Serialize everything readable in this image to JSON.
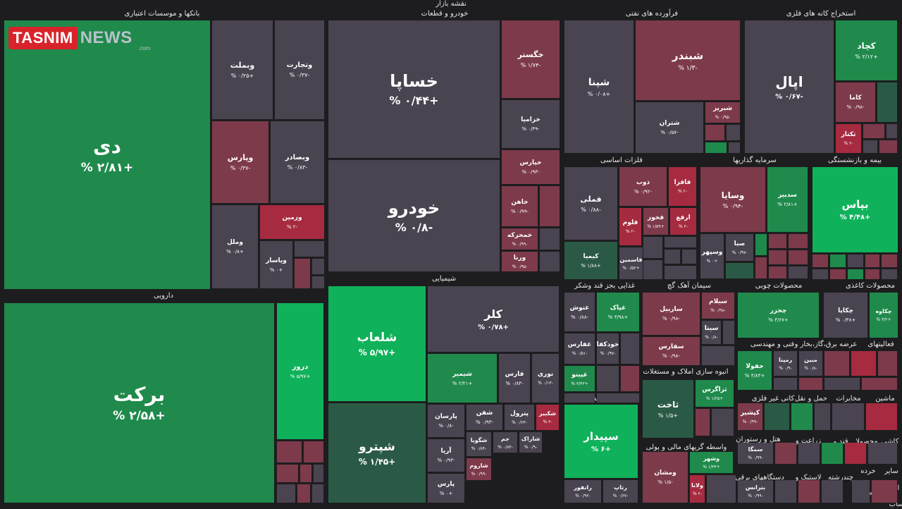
{
  "logo": {
    "brand": "TASNIM",
    "suffix": "NEWS",
    "domain": ".com"
  },
  "colors": {
    "bg": "#1d1d1f",
    "neutral": "#4a4350",
    "loss": "#7d3a4b",
    "loss_strong": "#a62b40",
    "gain": "#1f8a4c",
    "gain_bright": "#0fb25a",
    "gain_dark": "#2a5a45"
  },
  "top_title": "نقشه بازار",
  "sectors": [
    {
      "name": "بانکها و موسسات اعتباری"
    },
    {
      "name": "خودرو و قطعات"
    },
    {
      "name": "فرآورده های نفتی"
    },
    {
      "name": "استخراج کانه های فلزی"
    },
    {
      "name": "دارویی"
    },
    {
      "name": "شیمیایی"
    },
    {
      "name": "فلزات اساسی"
    },
    {
      "name": "سرمایه گذاریها"
    },
    {
      "name": "بیمه و بازنشستگی"
    },
    {
      "name": "غذایی بجز قند وشکر"
    },
    {
      "name": "سیمان آهک گچ"
    },
    {
      "name": "محصولات چوبی"
    },
    {
      "name": "محصولات کاغذی"
    },
    {
      "name": "فنی و مهندسی"
    },
    {
      "name": "عرضه برق،گاز،بخار و"
    },
    {
      "name": "فعالیتهای"
    },
    {
      "name": "رایانه"
    },
    {
      "name": "انبوه سازی املاک و مستغلات"
    },
    {
      "name": "کانی غیر فلزی"
    },
    {
      "name": "حمل و نقل"
    },
    {
      "name": "مخابرات"
    },
    {
      "name": "ماشین"
    },
    {
      "name": "واسطه گریهای مالی و پولی"
    },
    {
      "name": "هتل و رستوران"
    },
    {
      "name": "زراعت و"
    },
    {
      "name": "قند و"
    },
    {
      "name": "محصولا"
    },
    {
      "name": "کاشی"
    },
    {
      "name": "دستگاههای برقی"
    },
    {
      "name": "لاستیک و"
    },
    {
      "name": "چندرشته"
    },
    {
      "name": "خرده"
    },
    {
      "name": "سایر"
    },
    {
      "name": "اطلاع"
    },
    {
      "name": "محصولات"
    },
    {
      "name": "ساب"
    }
  ],
  "tiles": [
    {
      "name": "دی",
      "change": "+۲/۸۱ %"
    },
    {
      "name": "وبملت",
      "change": "+۰/۲۵ %"
    },
    {
      "name": "وتجارت",
      "change": "-۰/۳۷ %"
    },
    {
      "name": "وپارس",
      "change": "-۰/۳۷ %"
    },
    {
      "name": "وبصادر",
      "change": "-۰/۸۳ %"
    },
    {
      "name": "وزمین",
      "change": "-۲ %"
    },
    {
      "name": "وملل",
      "change": "+۰/۸ %"
    },
    {
      "name": "وپاسار",
      "change": "+۰ %"
    },
    {
      "name": "خساپا",
      "change": "+۰/۴۴ %"
    },
    {
      "name": "خودرو",
      "change": "-۰/۸ %"
    },
    {
      "name": "خگستر",
      "change": "-۱/۷۴ %"
    },
    {
      "name": "خزامیا",
      "change": "-۰/۴۹ %"
    },
    {
      "name": "خپارس",
      "change": "-۰/۹۳ %"
    },
    {
      "name": "خاهن",
      "change": "-۰/۹۹ %"
    },
    {
      "name": "خمحرکه",
      "change": "-۰/۹۹ %"
    },
    {
      "name": "ورنا",
      "change": "-۰/۹۵ %"
    },
    {
      "name": "شپنا",
      "change": "+۰/۰۸ %"
    },
    {
      "name": "شبندر",
      "change": "-۱/۳ %"
    },
    {
      "name": "شتران",
      "change": "-۰/۵۷ %"
    },
    {
      "name": "شبریز",
      "change": "-۰/۹۵ %"
    },
    {
      "name": "اپال",
      "change": "-۰/۶۷ %"
    },
    {
      "name": "کچاد",
      "change": "+۲/۱۲ %"
    },
    {
      "name": "کاما",
      "change": "-۰/۹۸ %"
    },
    {
      "name": "تکتار",
      "change": "-۲ %"
    },
    {
      "name": "برکت",
      "change": "+۲/۵۸ %"
    },
    {
      "name": "دروز",
      "change": "+۵/۹۷ %"
    },
    {
      "name": "شلعاب",
      "change": "+۵/۹۷ %"
    },
    {
      "name": "شپترو",
      "change": "+۱/۴۵ %"
    },
    {
      "name": "کلر",
      "change": "+۰/۷۸ %"
    },
    {
      "name": "شیمیر",
      "change": "+۲/۲۱ %"
    },
    {
      "name": "فارس",
      "change": "-۰/۸۴ %"
    },
    {
      "name": "نوری",
      "change": "-۰/۱۳ %"
    },
    {
      "name": "پارسان",
      "change": "-۰/۸ %"
    },
    {
      "name": "شفن",
      "change": "-۰/۹۳ %"
    },
    {
      "name": "پترول",
      "change": "-۰/۶۳ %"
    },
    {
      "name": "شکبیر",
      "change": "-۲ %"
    },
    {
      "name": "شگویا",
      "change": "-۰/۸۴ %"
    },
    {
      "name": "جم",
      "change": "-۰/۸۴ %"
    },
    {
      "name": "شاراک",
      "change": "-۰/۹ %"
    },
    {
      "name": "آریا",
      "change": "-۰/۹۳ %"
    },
    {
      "name": "شاروم",
      "change": "-۰/۹۹ %"
    },
    {
      "name": "پارس",
      "change": "+۰ %"
    },
    {
      "name": "فملی",
      "change": "-۰/۸۸ %"
    },
    {
      "name": "ذوب",
      "change": "-۰/۹۲ %"
    },
    {
      "name": "فافزا",
      "change": "-۲ %"
    },
    {
      "name": "فخوز",
      "change": "+۱/۵۹ %"
    },
    {
      "name": "فلوم",
      "change": "-۲ %"
    },
    {
      "name": "ارفع",
      "change": "-۲ %"
    },
    {
      "name": "کیمیا",
      "change": "+۱/۸۸ %"
    },
    {
      "name": "فاسمین",
      "change": "+۰/۵۲ %"
    },
    {
      "name": "وسایا",
      "change": "-۰/۹۴ %"
    },
    {
      "name": "سدبیر",
      "change": "+۲/۸۱ %"
    },
    {
      "name": "صبا",
      "change": "-۰/۹۷ %"
    },
    {
      "name": "وسپهر",
      "change": "+۰ %"
    },
    {
      "name": "بپاس",
      "change": "+۴/۴۸ %"
    },
    {
      "name": "غنوش",
      "change": "-۰/۸۸ %"
    },
    {
      "name": "غپاک",
      "change": "+۳/۹۸ %"
    },
    {
      "name": "غفارس",
      "change": "-۰/۵۱ %"
    },
    {
      "name": "خودکفا",
      "change": "-۰/۹۷ %"
    },
    {
      "name": "غپینو",
      "change": "+۳/۴۳ %"
    },
    {
      "name": "ساربیل",
      "change": "-۰/۹۸ %"
    },
    {
      "name": "سیلام",
      "change": "-۰/۹۸ %"
    },
    {
      "name": "سیتا",
      "change": "-۰/۸ %"
    },
    {
      "name": "سفارس",
      "change": "-۰/۹۸ %"
    },
    {
      "name": "چخزر",
      "change": "+۳/۶۷ %"
    },
    {
      "name": "چکاپا",
      "change": "+۰/۳۸ %"
    },
    {
      "name": "چکاوه",
      "change": "+۴/۲ %"
    },
    {
      "name": "خفولا",
      "change": "+۴/۸۳ %"
    },
    {
      "name": "رمپنا",
      "change": "-۰/۹ %"
    },
    {
      "name": "مبین",
      "change": "-۰/۸ %"
    },
    {
      "name": "ثاخت",
      "change": "+۱/۵ %"
    },
    {
      "name": "ثزاگرس",
      "change": "+۱/۲۵ %"
    },
    {
      "name": "سپیدار",
      "change": "+۶ %"
    },
    {
      "name": "رانفور",
      "change": "-۰/۹۲ %"
    },
    {
      "name": "رتاپ",
      "change": "-۰/۶۷ %"
    },
    {
      "name": "ومشان",
      "change": "-۱/۵ %"
    },
    {
      "name": "وشهر",
      "change": "+۱/۳۳ %"
    },
    {
      "name": "ولانا",
      "change": "-۲ %"
    },
    {
      "name": "کپشیر",
      "change": "-۰/۹۹ %"
    },
    {
      "name": "سمگا",
      "change": "-۰/۹۹ %"
    },
    {
      "name": "بترانس",
      "change": "-۰/۹۹ %"
    }
  ]
}
